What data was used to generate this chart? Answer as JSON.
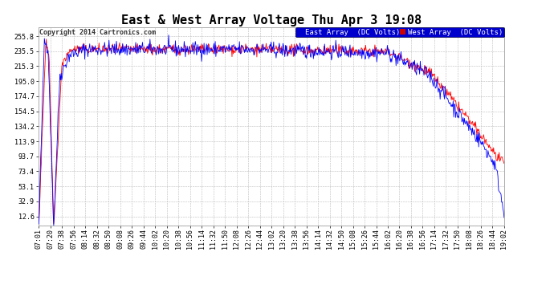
{
  "title": "East & West Array Voltage Thu Apr 3 19:08",
  "copyright": "Copyright 2014 Cartronics.com",
  "east_label": "East Array  (DC Volts)",
  "west_label": "West Array  (DC Volts)",
  "east_color": "#0000ff",
  "west_color": "#ff0000",
  "east_legend_bg": "#0000cc",
  "west_legend_bg": "#cc0000",
  "bg_color": "#ffffff",
  "plot_bg": "#ffffff",
  "grid_color": "#bbbbbb",
  "yticks": [
    12.6,
    32.9,
    53.1,
    73.4,
    93.7,
    113.9,
    134.2,
    154.5,
    174.7,
    195.0,
    215.3,
    235.5,
    255.8
  ],
  "ylim": [
    0,
    268
  ],
  "xtick_labels": [
    "07:01",
    "07:20",
    "07:38",
    "07:56",
    "08:14",
    "08:32",
    "08:50",
    "09:08",
    "09:26",
    "09:44",
    "10:02",
    "10:20",
    "10:38",
    "10:56",
    "11:14",
    "11:32",
    "11:50",
    "12:08",
    "12:26",
    "12:44",
    "13:02",
    "13:20",
    "13:38",
    "13:56",
    "14:14",
    "14:32",
    "14:50",
    "15:08",
    "15:26",
    "15:44",
    "16:02",
    "16:20",
    "16:38",
    "16:56",
    "17:14",
    "17:32",
    "17:50",
    "18:08",
    "18:26",
    "18:44",
    "19:02"
  ],
  "title_fontsize": 11,
  "label_fontsize": 6.5,
  "tick_fontsize": 6,
  "copyright_fontsize": 6,
  "linewidth": 0.6
}
